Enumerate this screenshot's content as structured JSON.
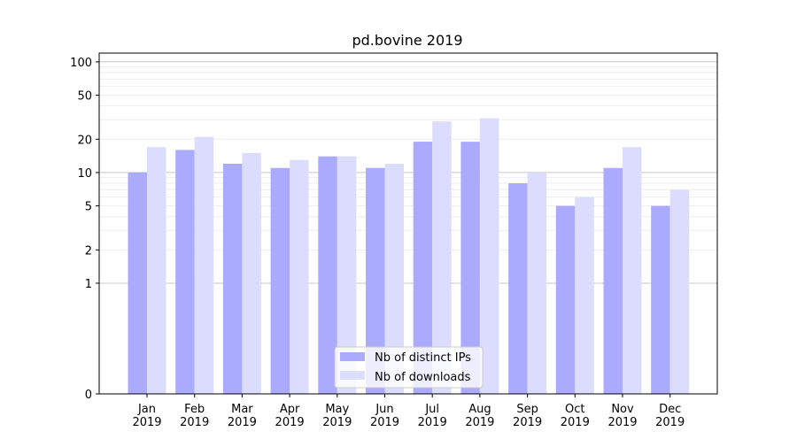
{
  "chart_data": {
    "type": "bar",
    "title": "pd.bovine 2019",
    "xlabel": "",
    "ylabel": "",
    "yscale": "symlog",
    "ylim": [
      0,
      120
    ],
    "grid": "horizontal",
    "yticks": [
      0,
      1,
      2,
      5,
      10,
      20,
      50,
      100
    ],
    "categories": [
      "Jan\n2019",
      "Feb\n2019",
      "Mar\n2019",
      "Apr\n2019",
      "May\n2019",
      "Jun\n2019",
      "Jul\n2019",
      "Aug\n2019",
      "Sep\n2019",
      "Oct\n2019",
      "Nov\n2019",
      "Dec\n2019"
    ],
    "series": [
      {
        "name": "Nb of distinct IPs",
        "color": "#aaaaff",
        "values": [
          10,
          16,
          12,
          11,
          14,
          11,
          19,
          19,
          8,
          5,
          11,
          5
        ]
      },
      {
        "name": "Nb of downloads",
        "color": "#dcdcff",
        "values": [
          17,
          21,
          15,
          13,
          14,
          12,
          29,
          31,
          10,
          6,
          17,
          7
        ]
      }
    ],
    "legend_position": "bottom-center"
  }
}
